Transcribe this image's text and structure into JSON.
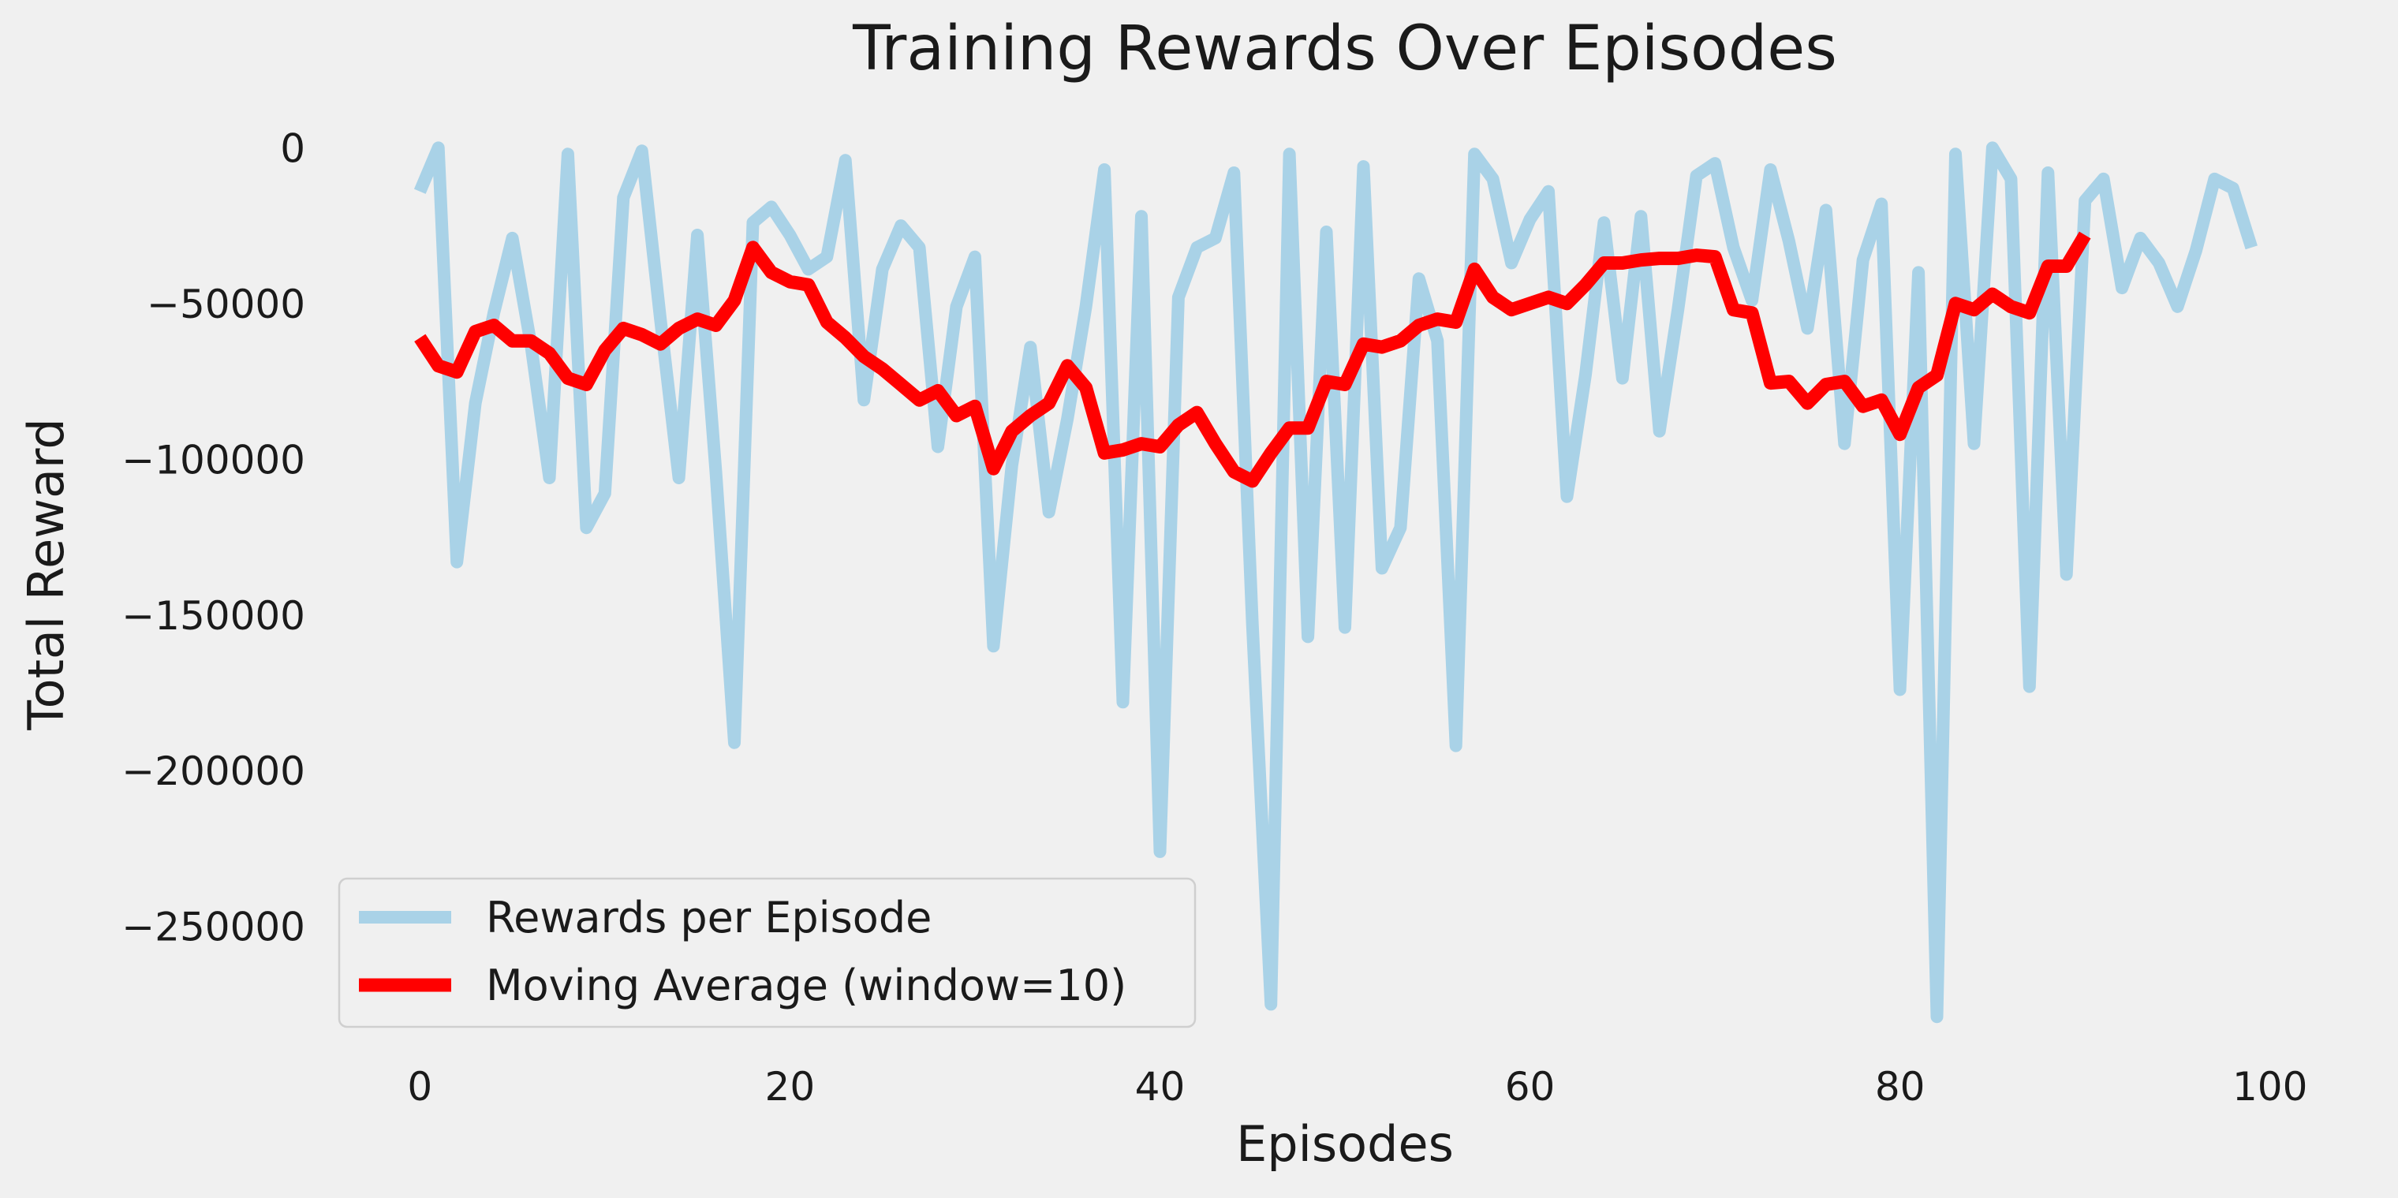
{
  "chart_data": {
    "type": "line",
    "title": "Training Rewards Over Episodes",
    "xlabel": "Episodes",
    "ylabel": "Total Reward",
    "xlim": [
      -5,
      105
    ],
    "ylim": [
      -283000,
      12000
    ],
    "xticks": [
      0,
      20,
      40,
      60,
      80,
      100
    ],
    "xtick_labels": [
      "0",
      "20",
      "40",
      "60",
      "80",
      "100"
    ],
    "yticks": [
      0,
      -50000,
      -100000,
      -150000,
      -200000,
      -250000
    ],
    "ytick_labels": [
      "0",
      "−50000",
      "−100000",
      "−150000",
      "−200000",
      "−250000"
    ],
    "grid": false,
    "legend_position": "lower-left",
    "series": [
      {
        "name": "Rewards per Episode",
        "color": "#a9d2e7",
        "x_start": 0,
        "values": [
          -14000,
          0,
          -133000,
          -82000,
          -53000,
          -29000,
          -63000,
          -106000,
          -2000,
          -122000,
          -111000,
          -16000,
          -1000,
          -55000,
          -106000,
          -28000,
          -104000,
          -191000,
          -24000,
          -19000,
          -28000,
          -39000,
          -35000,
          -4000,
          -81000,
          -39000,
          -25000,
          -32000,
          -96000,
          -51000,
          -35000,
          -160000,
          -102000,
          -64000,
          -117000,
          -87000,
          -51000,
          -7000,
          -178000,
          -22000,
          -226000,
          -48000,
          -32000,
          -29000,
          -8000,
          -153000,
          -275000,
          -2000,
          -157000,
          -27000,
          -154000,
          -6000,
          -135000,
          -122000,
          -42000,
          -62000,
          -192000,
          -2000,
          -10000,
          -37000,
          -23000,
          -14000,
          -112000,
          -73000,
          -24000,
          -74000,
          -22000,
          -91000,
          -52000,
          -9000,
          -5000,
          -32000,
          -49000,
          -7000,
          -30000,
          -58000,
          -20000,
          -95000,
          -36000,
          -18000,
          -174000,
          -40000,
          -279000,
          -2000,
          -95000,
          0,
          -10000,
          -173000,
          -8000,
          -137000,
          -17000,
          -10000,
          -45000,
          -29000,
          -37000,
          -51000,
          -33000,
          -10000,
          -13000,
          -32000
        ]
      },
      {
        "name": "Moving Average (window=10)",
        "color": "#ff0000",
        "x_start": 0,
        "values": [
          -61000,
          -70000,
          -72000,
          -59000,
          -57000,
          -62000,
          -62000,
          -66000,
          -74000,
          -76000,
          -65000,
          -58000,
          -60000,
          -63000,
          -58000,
          -55000,
          -57000,
          -49000,
          -32000,
          -40000,
          -43000,
          -44000,
          -56000,
          -61000,
          -67000,
          -71000,
          -76000,
          -81000,
          -78000,
          -86000,
          -83000,
          -103000,
          -91000,
          -86000,
          -82000,
          -70000,
          -77000,
          -98000,
          -97000,
          -95000,
          -96000,
          -89000,
          -85000,
          -95000,
          -104000,
          -107000,
          -98000,
          -90000,
          -90000,
          -75000,
          -76000,
          -63000,
          -64000,
          -62000,
          -57000,
          -55000,
          -56000,
          -39000,
          -48000,
          -52000,
          -50000,
          -48000,
          -50000,
          -44000,
          -37000,
          -37000,
          -36000,
          -35500,
          -35500,
          -34500,
          -35000,
          -52000,
          -53000,
          -75500,
          -75000,
          -82000,
          -76000,
          -75000,
          -83000,
          -81000,
          -92000,
          -77000,
          -73000,
          -50000,
          -52000,
          -47000,
          -51000,
          -53000,
          -38000,
          -38000,
          -28000
        ]
      }
    ]
  }
}
